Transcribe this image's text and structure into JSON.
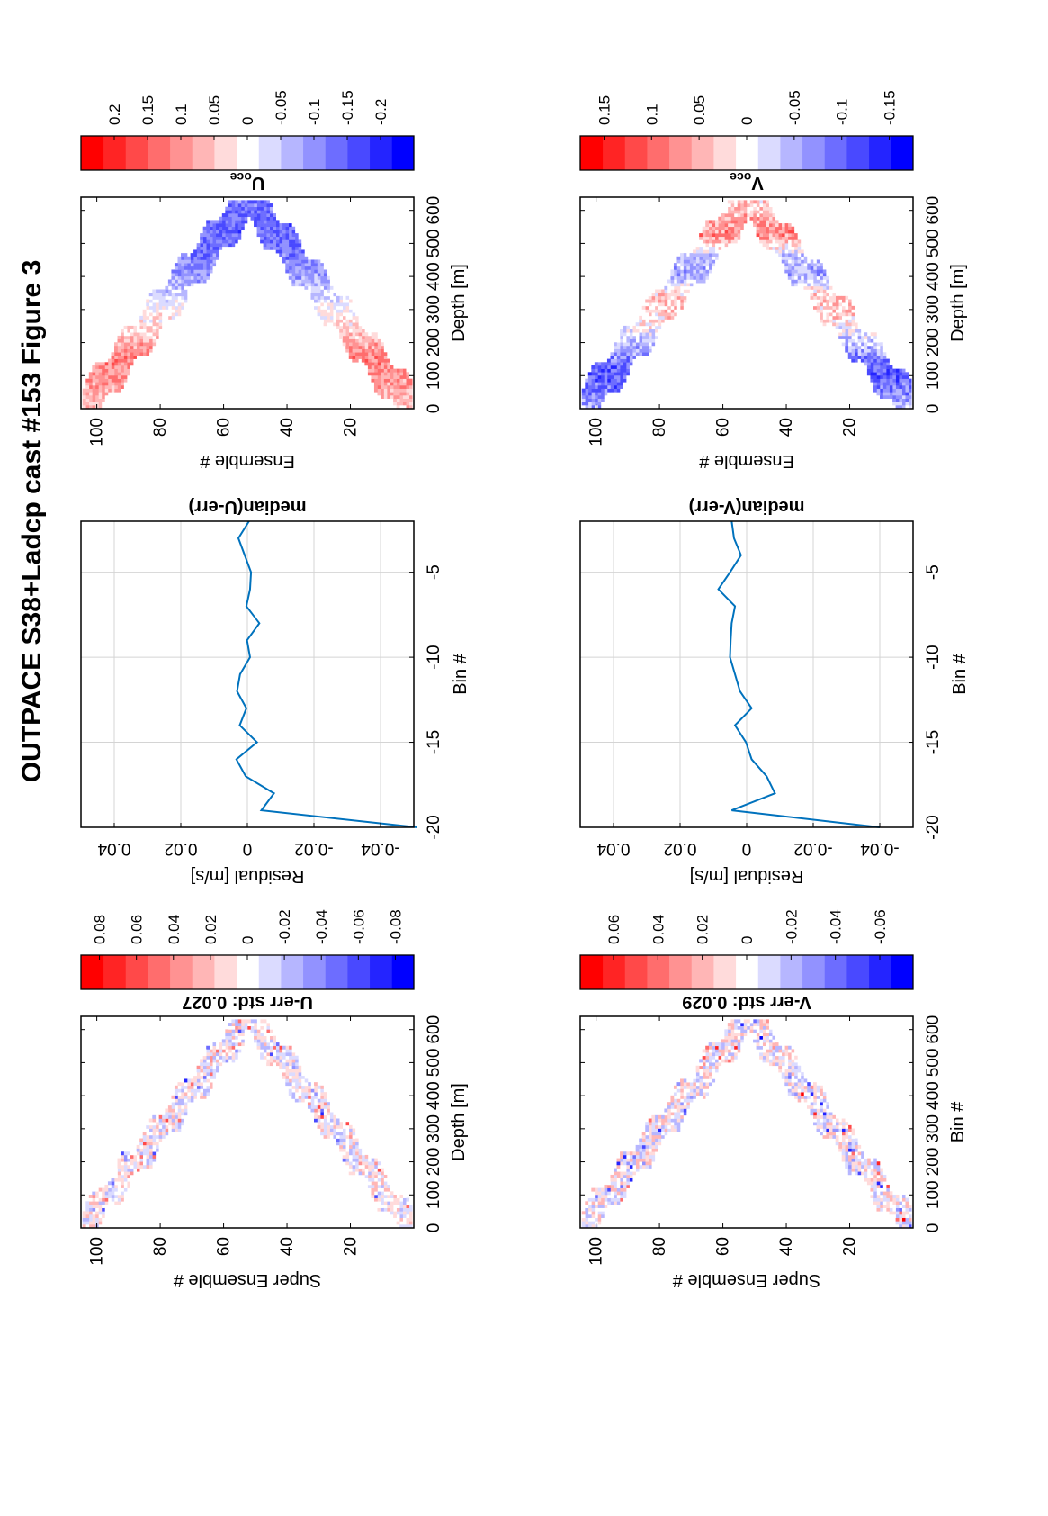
{
  "figure": {
    "title": "OUTPACE S38+Ladcp cast #153  Figure 3"
  },
  "chart_data": [
    {
      "id": "u_err",
      "type": "heatmap",
      "title": "U-err std: 0.027",
      "xlabel": "Super Ensemble #",
      "ylabel": "Depth [m]",
      "xlim": [
        0,
        105
      ],
      "ylim": [
        0,
        640
      ],
      "xticks": [
        20,
        40,
        60,
        80,
        100
      ],
      "yticks": [
        0,
        100,
        200,
        300,
        400,
        500,
        600
      ],
      "apex": 52,
      "max_depth": 630,
      "band_width": 11,
      "noise_amp": 0.025,
      "colorbar": {
        "range": [
          -0.09,
          0.09
        ],
        "ticks": [
          "0.08",
          "0.06",
          "0.04",
          "0.02",
          "0",
          "-0.02",
          "-0.04",
          "-0.06",
          "-0.08"
        ],
        "tick_values": [
          0.08,
          0.06,
          0.04,
          0.02,
          0,
          -0.02,
          -0.04,
          -0.06,
          -0.08
        ]
      }
    },
    {
      "id": "u_median",
      "type": "line",
      "title": "median(U-err)",
      "xlabel": "Residual [m/s]",
      "ylabel": "Bin #",
      "xlim": [
        -0.05,
        0.05
      ],
      "ylim": [
        -20,
        -2
      ],
      "xticks": [
        -0.04,
        -0.02,
        0,
        0.02,
        0.04
      ],
      "xtick_labels": [
        "-0.04",
        "-0.02",
        "0",
        "0.02",
        "0.04"
      ],
      "yticks": [
        -5,
        -10,
        -15,
        -20
      ],
      "ytick_labels": [
        "-5",
        "-10",
        "-15",
        "-20"
      ],
      "grid": true,
      "series": [
        {
          "x": [
            -0.0005,
            0.0027,
            0.0008,
            -0.0011,
            -0.0008,
            0.0003,
            -0.0036,
            0.0001,
            -0.0008,
            0.0022,
            0.0031,
            0.0003,
            0.0023,
            -0.0029,
            0.0033,
            0.0005,
            -0.008,
            -0.0042,
            -0.051
          ],
          "y": [
            -2,
            -3,
            -4,
            -5,
            -6,
            -7,
            -8,
            -9,
            -10,
            -11,
            -12,
            -13,
            -14,
            -15,
            -16,
            -17,
            -18,
            -19,
            -20
          ]
        }
      ]
    },
    {
      "id": "u_oce",
      "type": "heatmap",
      "title": "U",
      "title_sub": "oce",
      "xlabel": "Ensemble #",
      "ylabel": "Depth [m]",
      "xlim": [
        0,
        105
      ],
      "ylim": [
        0,
        640
      ],
      "xticks": [
        20,
        40,
        60,
        80,
        100
      ],
      "yticks": [
        0,
        100,
        200,
        300,
        400,
        500,
        600
      ],
      "apex": 52,
      "max_depth": 630,
      "band_width": 14,
      "noise_amp": 0.05,
      "profile": {
        "depth": [
          0,
          80,
          150,
          220,
          300,
          360,
          420,
          480,
          540,
          630
        ],
        "value": [
          0.05,
          0.1,
          0.12,
          0.05,
          0,
          -0.06,
          -0.11,
          -0.14,
          -0.15,
          -0.13
        ]
      },
      "colorbar": {
        "range": [
          -0.25,
          0.25
        ],
        "ticks": [
          "0.2",
          "0.15",
          "0.1",
          "0.05",
          "0",
          "-0.05",
          "-0.1",
          "-0.15",
          "-0.2"
        ],
        "tick_values": [
          0.2,
          0.15,
          0.1,
          0.05,
          0,
          -0.05,
          -0.1,
          -0.15,
          -0.2
        ]
      }
    },
    {
      "id": "v_err",
      "type": "heatmap",
      "title": "V-err std: 0.029",
      "xlabel": "Super Ensemble #",
      "ylabel": "Bin #",
      "xlim": [
        0,
        105
      ],
      "ylim": [
        0,
        640
      ],
      "xticks": [
        20,
        40,
        60,
        80,
        100
      ],
      "yticks": [
        0,
        100,
        200,
        300,
        400,
        500,
        600
      ],
      "apex": 52,
      "max_depth": 630,
      "band_width": 11,
      "noise_amp": 0.025,
      "colorbar": {
        "range": [
          -0.075,
          0.075
        ],
        "ticks": [
          "0.06",
          "0.04",
          "0.02",
          "0",
          "-0.02",
          "-0.04",
          "-0.06"
        ],
        "tick_values": [
          0.06,
          0.04,
          0.02,
          0,
          -0.02,
          -0.04,
          -0.06
        ]
      }
    },
    {
      "id": "v_median",
      "type": "line",
      "title": "median(V-err)",
      "xlabel": "Residual [m/s]",
      "ylabel": "Bin #",
      "xlim": [
        -0.05,
        0.05
      ],
      "ylim": [
        -20,
        -2
      ],
      "xticks": [
        -0.04,
        -0.02,
        0,
        0.02,
        0.04
      ],
      "xtick_labels": [
        "-0.04",
        "-0.02",
        "0",
        "0.02",
        "0.04"
      ],
      "yticks": [
        -5,
        -10,
        -15,
        -20
      ],
      "ytick_labels": [
        "-5",
        "-10",
        "-15",
        "-20"
      ],
      "grid": true,
      "series": [
        {
          "x": [
            0.0045,
            0.0038,
            0.0017,
            0.005,
            0.0085,
            0.0035,
            0.0045,
            0.0048,
            0.005,
            0.0035,
            0.002,
            -0.0015,
            0.0035,
            0.0002,
            -0.0015,
            -0.006,
            -0.0085,
            0.0045,
            -0.04
          ],
          "y": [
            -2,
            -3,
            -4,
            -5,
            -6,
            -7,
            -8,
            -9,
            -10,
            -11,
            -12,
            -13,
            -14,
            -15,
            -16,
            -17,
            -18,
            -19,
            -20
          ]
        }
      ]
    },
    {
      "id": "v_oce",
      "type": "heatmap",
      "title": "V",
      "title_sub": "oce",
      "xlabel": "Ensemble #",
      "ylabel": "Depth [m]",
      "xlim": [
        0,
        105
      ],
      "ylim": [
        0,
        640
      ],
      "xticks": [
        20,
        40,
        60,
        80,
        100
      ],
      "yticks": [
        0,
        100,
        200,
        300,
        400,
        500,
        600
      ],
      "apex": 52,
      "max_depth": 630,
      "band_width": 14,
      "noise_amp": 0.045,
      "profile": {
        "depth": [
          0,
          60,
          120,
          180,
          260,
          330,
          400,
          460,
          520,
          580,
          630
        ],
        "value": [
          -0.05,
          -0.1,
          -0.11,
          -0.05,
          0.02,
          0.04,
          -0.06,
          -0.03,
          0.08,
          0.05,
          0.02
        ]
      },
      "colorbar": {
        "range": [
          -0.175,
          0.175
        ],
        "ticks": [
          "0.15",
          "0.1",
          "0.05",
          "0",
          "-0.05",
          "-0.1",
          "-0.15"
        ],
        "tick_values": [
          0.15,
          0.1,
          0.05,
          0,
          -0.05,
          -0.1,
          -0.15
        ]
      }
    }
  ],
  "colors": {
    "positive": "#ff0000",
    "negative": "#0000ff",
    "zero": "#ffffff",
    "line": "#0072bd",
    "grid": "#d4d4d4"
  }
}
